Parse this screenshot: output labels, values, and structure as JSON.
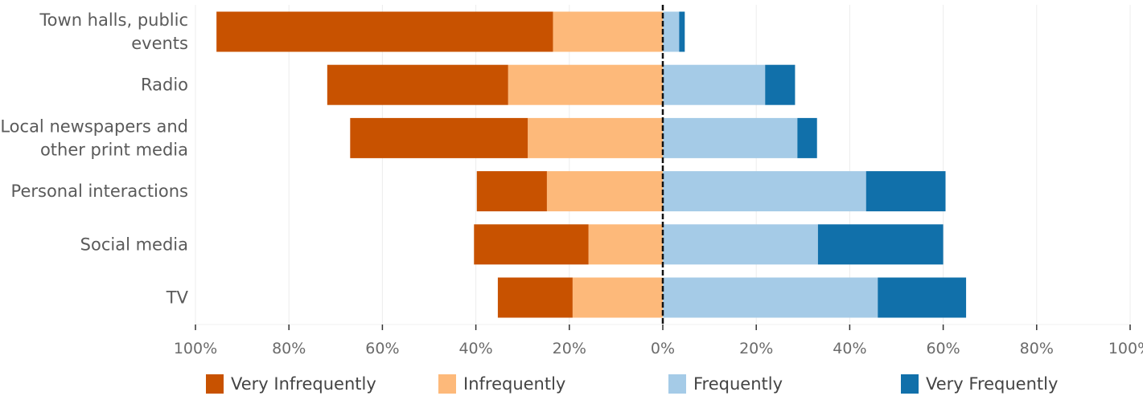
{
  "chart_data": {
    "type": "bar",
    "orientation": "horizontal",
    "stacking": "diverging",
    "categories": [
      [
        "Town halls, public",
        "events"
      ],
      [
        "Radio"
      ],
      [
        "Local newspapers and",
        "other print media"
      ],
      [
        "Personal interactions"
      ],
      [
        "Social media"
      ],
      [
        "TV"
      ]
    ],
    "series": [
      {
        "name": "Very Infrequently",
        "side": "negative",
        "color": "#c85200",
        "values": [
          72,
          38.7,
          38,
          15,
          24.5,
          16
        ]
      },
      {
        "name": "Infrequently",
        "side": "negative",
        "color": "#fdb97a",
        "values": [
          23.5,
          33.1,
          28.9,
          24.8,
          15.9,
          19.3
        ]
      },
      {
        "name": "Frequently",
        "side": "positive",
        "color": "#a5cbe7",
        "values": [
          3.5,
          21.9,
          28.8,
          43.5,
          33.2,
          46
        ]
      },
      {
        "name": "Very Frequently",
        "side": "positive",
        "color": "#1170aa",
        "values": [
          1.2,
          6.4,
          4.2,
          17,
          26.8,
          18.9
        ]
      }
    ],
    "xlim": [
      -100,
      100
    ],
    "x_ticks": [
      -100,
      -80,
      -60,
      -40,
      -20,
      0,
      20,
      40,
      60,
      80,
      100
    ],
    "x_tick_labels": [
      "100%",
      "80%",
      "60%",
      "40%",
      "20%",
      "0%",
      "20%",
      "40%",
      "60%",
      "80%",
      "100%"
    ],
    "grid": true,
    "zero_line": true,
    "legend_position": "bottom",
    "title": "",
    "xlabel": "",
    "ylabel": ""
  }
}
